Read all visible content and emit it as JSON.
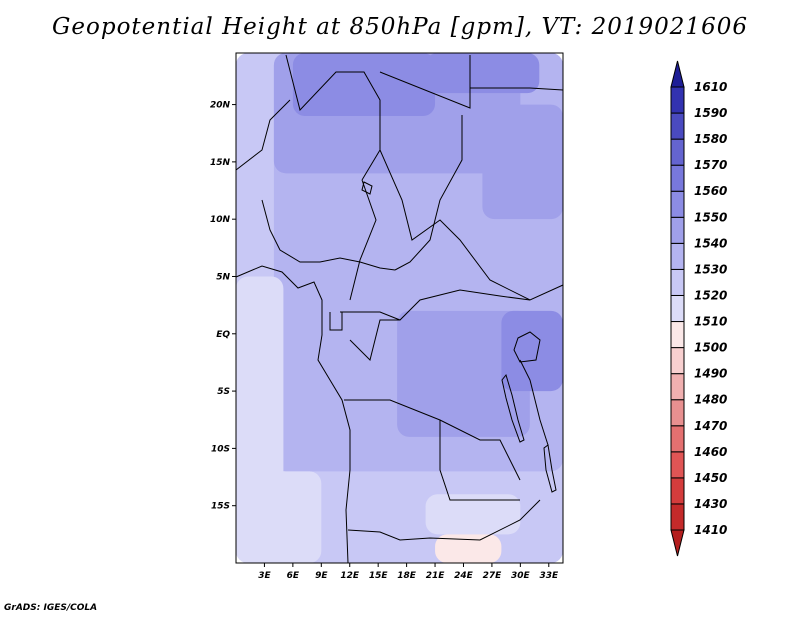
{
  "title": "Geopotential Height at 850hPa [gpm], VT: 2019021606",
  "credit": "GrADS: IGES/COLA",
  "map": {
    "lon_range": [
      0,
      34.5
    ],
    "lat_range": [
      -20,
      24.5
    ],
    "lat_ticks": [
      {
        "value": 20,
        "label": "20N"
      },
      {
        "value": 15,
        "label": "15N"
      },
      {
        "value": 10,
        "label": "10N"
      },
      {
        "value": 5,
        "label": "5N"
      },
      {
        "value": 0,
        "label": "EQ"
      },
      {
        "value": -5,
        "label": "5S"
      },
      {
        "value": -10,
        "label": "10S"
      },
      {
        "value": -15,
        "label": "15S"
      }
    ],
    "lon_ticks": [
      {
        "value": 3,
        "label": "3E"
      },
      {
        "value": 6,
        "label": "6E"
      },
      {
        "value": 9,
        "label": "9E"
      },
      {
        "value": 12,
        "label": "12E"
      },
      {
        "value": 15,
        "label": "15E"
      },
      {
        "value": 18,
        "label": "18E"
      },
      {
        "value": 21,
        "label": "21E"
      },
      {
        "value": 24,
        "label": "24E"
      },
      {
        "value": 27,
        "label": "27E"
      },
      {
        "value": 30,
        "label": "30E"
      },
      {
        "value": 33,
        "label": "33E"
      }
    ]
  },
  "colorbar": {
    "levels": [
      "1410",
      "1430",
      "1450",
      "1460",
      "1470",
      "1480",
      "1490",
      "1500",
      "1510",
      "1520",
      "1530",
      "1540",
      "1550",
      "1560",
      "1570",
      "1580",
      "1590",
      "1610"
    ],
    "colors": [
      "#b41e1e",
      "#c42a2a",
      "#d43c3c",
      "#e05555",
      "#e47070",
      "#e89090",
      "#f0b0b0",
      "#f8d0d0",
      "#fbe8e8",
      "#dcdcf8",
      "#c8c8f5",
      "#b4b4f0",
      "#a0a0ea",
      "#8c8ce4",
      "#7878dc",
      "#6464d0",
      "#4a4ac0",
      "#3232b0",
      "#1e1e96"
    ]
  },
  "field": {
    "description_colors": "index into colorbar.colors",
    "regions": [
      {
        "lon": [
          0,
          34.5
        ],
        "lat": [
          -20,
          24.5
        ],
        "level": 10
      },
      {
        "lon": [
          4,
          34.5
        ],
        "lat": [
          -12,
          24.5
        ],
        "level": 11
      },
      {
        "lon": [
          4,
          30
        ],
        "lat": [
          14,
          24.5
        ],
        "level": 12
      },
      {
        "lon": [
          6,
          21
        ],
        "lat": [
          19,
          24.5
        ],
        "level": 13
      },
      {
        "lon": [
          20,
          32
        ],
        "lat": [
          21,
          24.5
        ],
        "level": 13
      },
      {
        "lon": [
          26,
          34.5
        ],
        "lat": [
          10,
          20
        ],
        "level": 12
      },
      {
        "lon": [
          17,
          31
        ],
        "lat": [
          -9,
          2
        ],
        "level": 12
      },
      {
        "lon": [
          28,
          34.5
        ],
        "lat": [
          -5,
          2
        ],
        "level": 13
      },
      {
        "lon": [
          0,
          5
        ],
        "lat": [
          -20,
          5
        ],
        "level": 9
      },
      {
        "lon": [
          0,
          9
        ],
        "lat": [
          -20,
          -12
        ],
        "level": 9
      },
      {
        "lon": [
          20,
          30
        ],
        "lat": [
          -17.5,
          -14
        ],
        "level": 9
      },
      {
        "lon": [
          21,
          28
        ],
        "lat": [
          -20,
          -17.5
        ],
        "level": 8
      }
    ]
  }
}
